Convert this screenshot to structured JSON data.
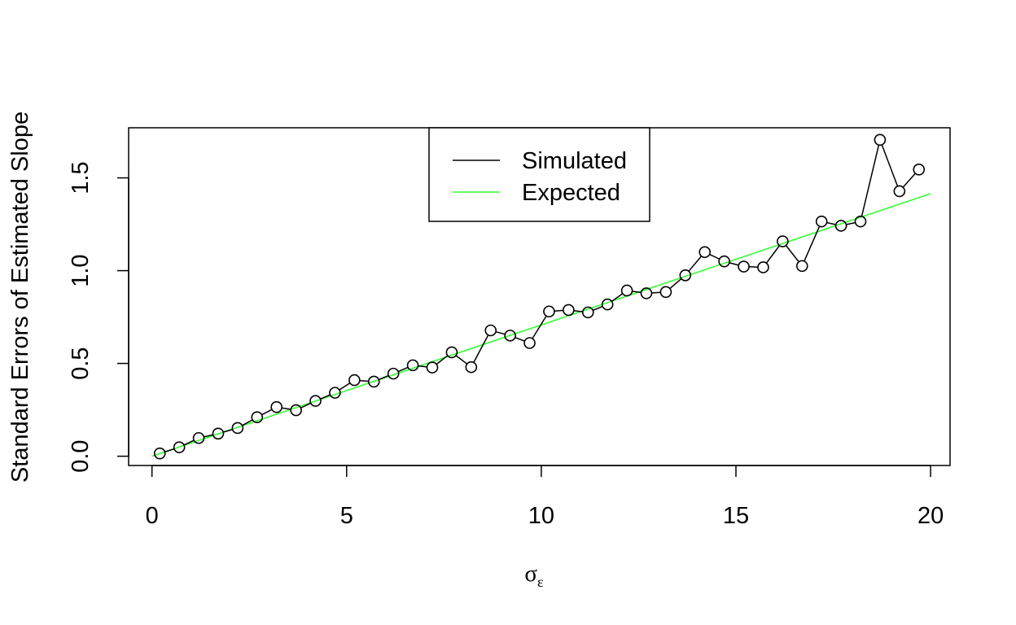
{
  "chart_data": {
    "type": "line",
    "title": "",
    "xlabel": "σ",
    "xlabel_subscript": "ε",
    "ylabel": "Standard Errors of Estimated Slope",
    "xlim": [
      -0.6,
      20.5
    ],
    "ylim": [
      -0.05,
      1.77
    ],
    "x_ticks": [
      0,
      5,
      10,
      15,
      20
    ],
    "x_tick_labels": [
      "0",
      "5",
      "10",
      "15",
      "20"
    ],
    "y_ticks": [
      0.0,
      0.5,
      1.0,
      1.5
    ],
    "y_tick_labels": [
      "0.0",
      "0.5",
      "1.0",
      "1.5"
    ],
    "legend_position": "top-center",
    "series": [
      {
        "name": "Simulated",
        "color": "#000000",
        "marker": "open-circle",
        "x": [
          0.2,
          0.7,
          1.2,
          1.7,
          2.2,
          2.7,
          3.2,
          3.7,
          4.2,
          4.7,
          5.2,
          5.7,
          6.2,
          6.7,
          7.2,
          7.7,
          8.2,
          8.7,
          9.2,
          9.7,
          10.2,
          10.7,
          11.2,
          11.7,
          12.2,
          12.7,
          13.2,
          13.7,
          14.2,
          14.7,
          15.2,
          15.7,
          16.2,
          16.7,
          17.2,
          17.7,
          18.2,
          18.7,
          19.2,
          19.7
        ],
        "values": [
          0.015,
          0.048,
          0.098,
          0.122,
          0.152,
          0.21,
          0.265,
          0.248,
          0.298,
          0.342,
          0.41,
          0.402,
          0.445,
          0.49,
          0.478,
          0.56,
          0.48,
          0.678,
          0.65,
          0.61,
          0.78,
          0.788,
          0.775,
          0.818,
          0.893,
          0.878,
          0.885,
          0.975,
          1.1,
          1.05,
          1.022,
          1.018,
          1.158,
          1.025,
          1.265,
          1.242,
          1.265,
          1.705,
          1.428,
          1.545
        ]
      },
      {
        "name": "Expected",
        "color": "#33ff33",
        "marker": "none",
        "x": [
          0.0,
          20.0
        ],
        "values": [
          0.0,
          1.415
        ]
      }
    ]
  }
}
